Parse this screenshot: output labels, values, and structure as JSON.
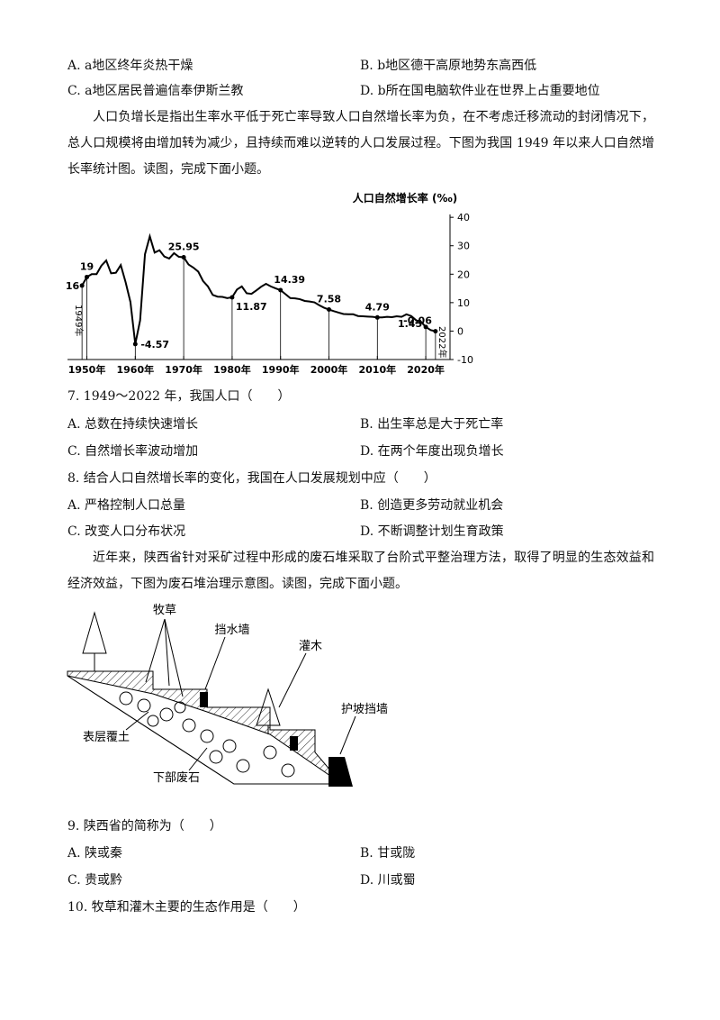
{
  "q6_options": [
    "A. a地区终年炎热干燥",
    "B. b地区德干高原地势东高西低",
    "C. a地区居民普遍信奉伊斯兰教",
    "D. b所在国电脑软件业在世界上占重要地位"
  ],
  "passage1": "人口负增长是指出生率水平低于死亡率导致人口自然增长率为负，在不考虑迁移流动的封闭情况下，总人口规模将由增加转为减少，且持续而难以逆转的人口发展过程。下图为我国 1949 年以来人口自然增长率统计图。读图，完成下面小题。",
  "chart_data": {
    "type": "line",
    "title": "人口自然增长率 (‰)",
    "x": [
      1949,
      1950,
      1951,
      1952,
      1953,
      1954,
      1955,
      1956,
      1957,
      1958,
      1959,
      1960,
      1961,
      1962,
      1963,
      1964,
      1965,
      1966,
      1967,
      1968,
      1969,
      1970,
      1971,
      1972,
      1973,
      1974,
      1975,
      1976,
      1977,
      1978,
      1979,
      1980,
      1981,
      1982,
      1983,
      1984,
      1985,
      1986,
      1987,
      1988,
      1989,
      1990,
      1991,
      1992,
      1993,
      1994,
      1995,
      1996,
      1997,
      1998,
      1999,
      2000,
      2001,
      2002,
      2003,
      2004,
      2005,
      2006,
      2007,
      2008,
      2009,
      2010,
      2011,
      2012,
      2013,
      2014,
      2015,
      2016,
      2017,
      2018,
      2019,
      2020,
      2021,
      2022
    ],
    "series": [
      {
        "color": "#000000",
        "values": [
          16,
          19,
          20,
          20,
          23,
          24.8,
          20.3,
          20.5,
          23.2,
          17.2,
          10.2,
          -4.57,
          3.8,
          27,
          33.3,
          27.6,
          28.4,
          26.2,
          25.5,
          27.4,
          26.1,
          25.95,
          23.4,
          22.3,
          20.9,
          17.6,
          15.7,
          12.7,
          12.1,
          12,
          11.6,
          11.87,
          14.6,
          15.7,
          13.3,
          13.1,
          14.3,
          15.6,
          16.6,
          15.7,
          15,
          14.39,
          13,
          11.6,
          11.5,
          11.2,
          10.6,
          10.4,
          10.1,
          9.1,
          8.2,
          7.58,
          7,
          6.5,
          6,
          5.9,
          5.9,
          5.3,
          5.2,
          5.1,
          5,
          4.79,
          4.8,
          5,
          4.9,
          5.2,
          5,
          5.9,
          5.3,
          3.8,
          3.3,
          1.45,
          0.34,
          -0.06
        ]
      }
    ],
    "highlights": {
      "x": [
        1949,
        1950,
        1960,
        1970,
        1980,
        1990,
        2000,
        2010,
        2020,
        2022
      ],
      "values": [
        16,
        19,
        -4.57,
        25.95,
        11.87,
        14.39,
        7.58,
        4.79,
        1.45,
        -0.06
      ]
    },
    "annotations": [
      "1949年",
      "2022年"
    ],
    "xlim": [
      1946,
      2025
    ],
    "ylim": [
      -10,
      41
    ],
    "xticks": [
      {
        "value": 1950,
        "label": "1950年"
      },
      {
        "value": 1960,
        "label": "1960年"
      },
      {
        "value": 1970,
        "label": "1970年"
      },
      {
        "value": 1980,
        "label": "1980年"
      },
      {
        "value": 1990,
        "label": "1990年"
      },
      {
        "value": 2000,
        "label": "2000年"
      },
      {
        "value": 2010,
        "label": "2010年"
      },
      {
        "value": 2020,
        "label": "2020年"
      }
    ],
    "yticks": [
      -10,
      0,
      10,
      20,
      30,
      40
    ]
  },
  "questions_a": [
    {
      "stem": "7. 1949～2022 年，我国人口（　　）",
      "options": [
        "A. 总数在持续快速增长",
        "B. 出生率总是大于死亡率",
        "C. 自然增长率波动增加",
        "D. 在两个年度出现负增长"
      ]
    },
    {
      "stem": "8. 结合人口自然增长率的变化，我国在人口发展规划中应（　　）",
      "options": [
        "A. 严格控制人口总量",
        "B. 创造更多劳动就业机会",
        "C. 改变人口分布状况",
        "D. 不断调整计划生育政策"
      ]
    }
  ],
  "passage2": "近年来，陕西省针对采矿过程中形成的废石堆采取了台阶式平整治理方法，取得了明显的生态效益和经济效益，下图为废石堆治理示意图。读图，完成下面小题。",
  "diagram": {
    "grass": "牧草",
    "wall": "挡水墙",
    "shrub": "灌木",
    "retaining": "护坡挡墙",
    "topsoil": "表层覆土",
    "rock": "下部废石"
  },
  "questions_b": [
    {
      "stem": "9. 陕西省的简称为（　　）",
      "options": [
        "A. 陕或秦",
        "B. 甘或陇",
        "C. 贵或黔",
        "D. 川或蜀"
      ]
    },
    {
      "stem": "10. 牧草和灌木主要的生态作用是（　　）"
    }
  ]
}
